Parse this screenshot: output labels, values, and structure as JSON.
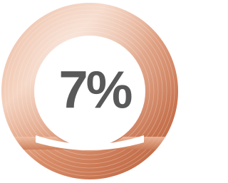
{
  "badge": {
    "label": "7%"
  }
}
